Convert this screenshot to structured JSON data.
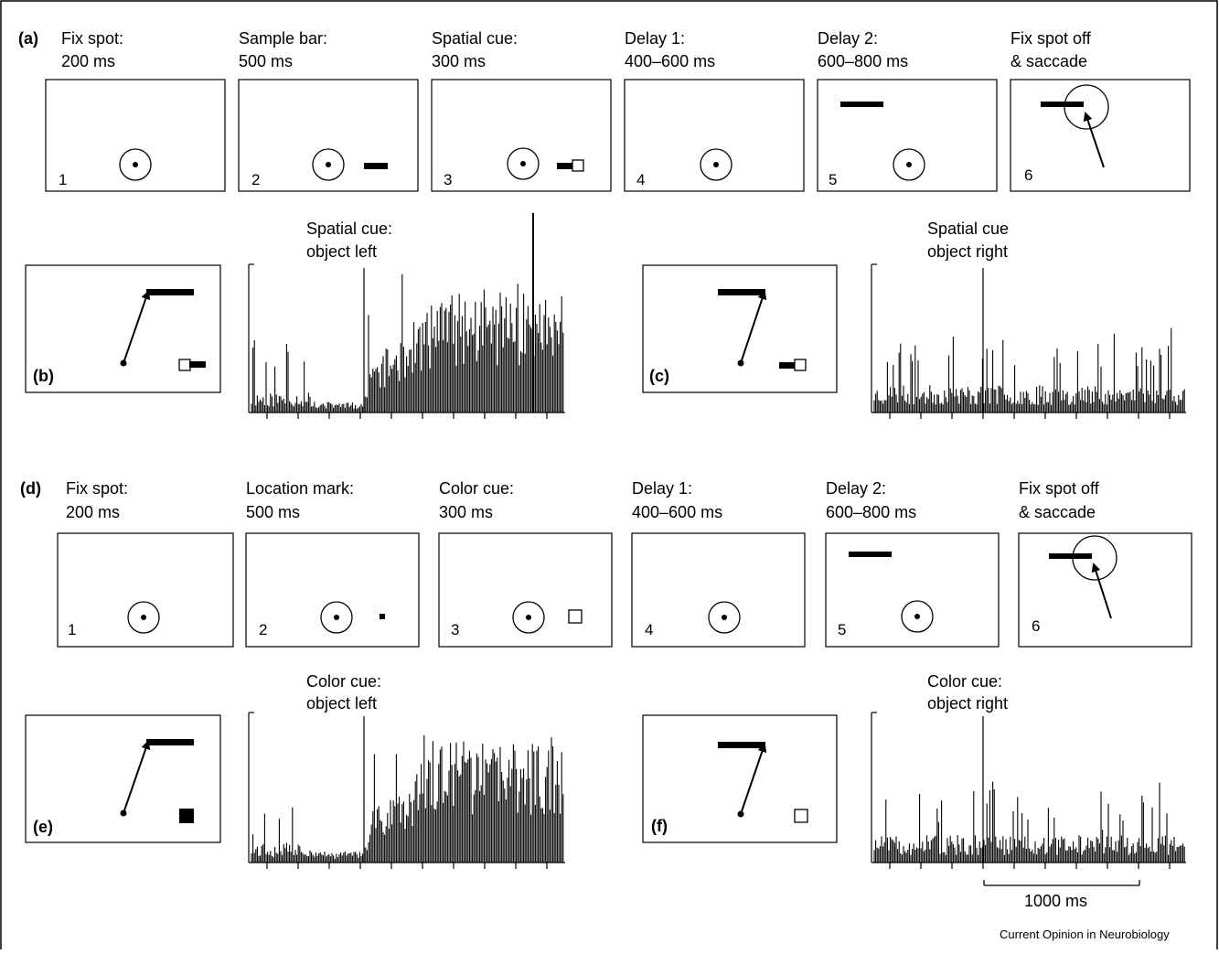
{
  "colors": {
    "ink": "#000000",
    "background": "#ffffff"
  },
  "section_a": {
    "letter": "(a)",
    "frames": [
      {
        "num": "1",
        "line1": "Fix spot:",
        "line2": "200 ms"
      },
      {
        "num": "2",
        "line1": "Sample bar:",
        "line2": "500 ms"
      },
      {
        "num": "3",
        "line1": "Spatial cue:",
        "line2": "300 ms"
      },
      {
        "num": "4",
        "line1": "Delay 1:",
        "line2": "400–600 ms"
      },
      {
        "num": "5",
        "line1": "Delay 2:",
        "line2": "600–800 ms"
      },
      {
        "num": "6",
        "line1": "Fix spot off",
        "line2": "& saccade"
      }
    ]
  },
  "section_d": {
    "letter": "(d)",
    "frames": [
      {
        "num": "1",
        "line1": "Fix spot:",
        "line2": "200 ms"
      },
      {
        "num": "2",
        "line1": "Location mark:",
        "line2": "500 ms"
      },
      {
        "num": "3",
        "line1": "Color cue:",
        "line2": "300 ms"
      },
      {
        "num": "4",
        "line1": "Delay 1:",
        "line2": "400–600 ms"
      },
      {
        "num": "5",
        "line1": "Delay 2:",
        "line2": "600–800 ms"
      },
      {
        "num": "6",
        "line1": "Fix spot off",
        "line2": "& saccade"
      }
    ]
  },
  "histograms": {
    "b": {
      "letter": "(b)",
      "title1": "Spatial cue:",
      "title2": "object left",
      "response": "high"
    },
    "c": {
      "letter": "(c)",
      "title1": "Spatial cue",
      "title2": "object right",
      "response": "low"
    },
    "e": {
      "letter": "(e)",
      "title1": "Color cue:",
      "title2": "object left",
      "response": "high"
    },
    "f": {
      "letter": "(f)",
      "title1": "Color cue:",
      "title2": "object right",
      "response": "low"
    }
  },
  "scale_bar": {
    "label": "1000 ms"
  },
  "credit": "Current Opinion in Neurobiology"
}
